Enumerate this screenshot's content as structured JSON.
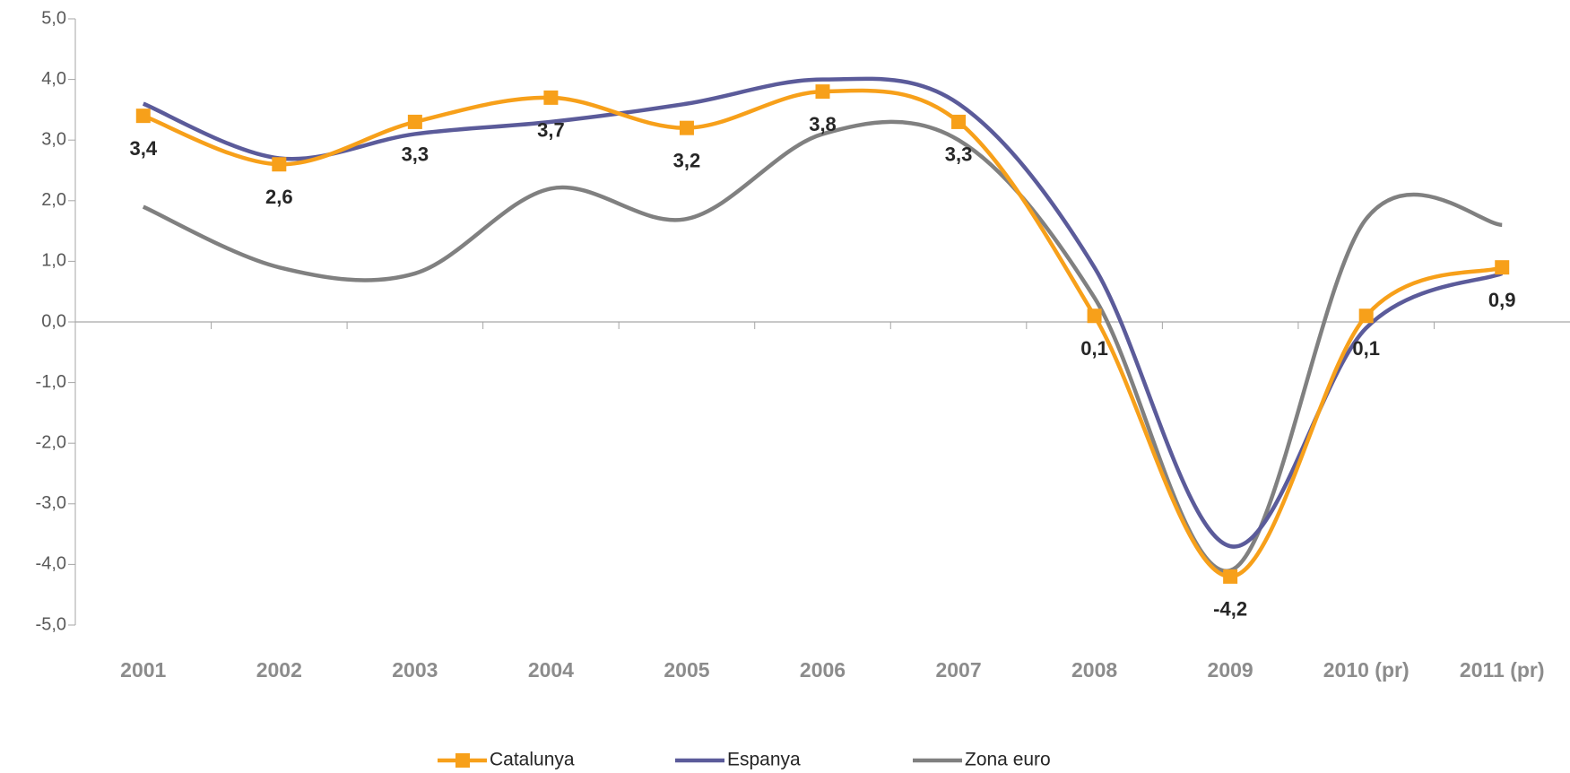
{
  "chart_data": {
    "type": "line",
    "categories": [
      "2001",
      "2002",
      "2003",
      "2004",
      "2005",
      "2006",
      "2007",
      "2008",
      "2009",
      "2010 (pr)",
      "2011 (pr)"
    ],
    "series": [
      {
        "name": "Catalunya",
        "color": "#f7a01a",
        "marker": "square",
        "values": [
          3.4,
          2.6,
          3.3,
          3.7,
          3.2,
          3.8,
          3.3,
          0.1,
          -4.2,
          0.1,
          0.9
        ],
        "value_labels": [
          "3,4",
          "2,6",
          "3,3",
          "3,7",
          "3,2",
          "3,8",
          "3,3",
          "0,1",
          "-4,2",
          "0,1",
          "0,9"
        ]
      },
      {
        "name": "Espanya",
        "color": "#5b5b9a",
        "values": [
          3.6,
          2.7,
          3.1,
          3.3,
          3.6,
          4.0,
          3.6,
          0.9,
          -3.7,
          -0.1,
          0.8
        ]
      },
      {
        "name": "Zona euro",
        "color": "#808080",
        "values": [
          1.9,
          0.9,
          0.8,
          2.2,
          1.7,
          3.1,
          3.0,
          0.4,
          -4.1,
          1.7,
          1.6
        ]
      }
    ],
    "ylim": [
      -5,
      5
    ],
    "yticks": [
      {
        "value": -5,
        "label": "-5,0"
      },
      {
        "value": -4,
        "label": "-4,0"
      },
      {
        "value": -3,
        "label": "-3,0"
      },
      {
        "value": -2,
        "label": "-2,0"
      },
      {
        "value": -1,
        "label": "-1,0"
      },
      {
        "value": 0,
        "label": "0,0"
      },
      {
        "value": 1,
        "label": "1,0"
      },
      {
        "value": 2,
        "label": "2,0"
      },
      {
        "value": 3,
        "label": "3,0"
      },
      {
        "value": 4,
        "label": "4,0"
      },
      {
        "value": 5,
        "label": "5,0"
      }
    ],
    "smooth": true,
    "legend": "bottom"
  }
}
